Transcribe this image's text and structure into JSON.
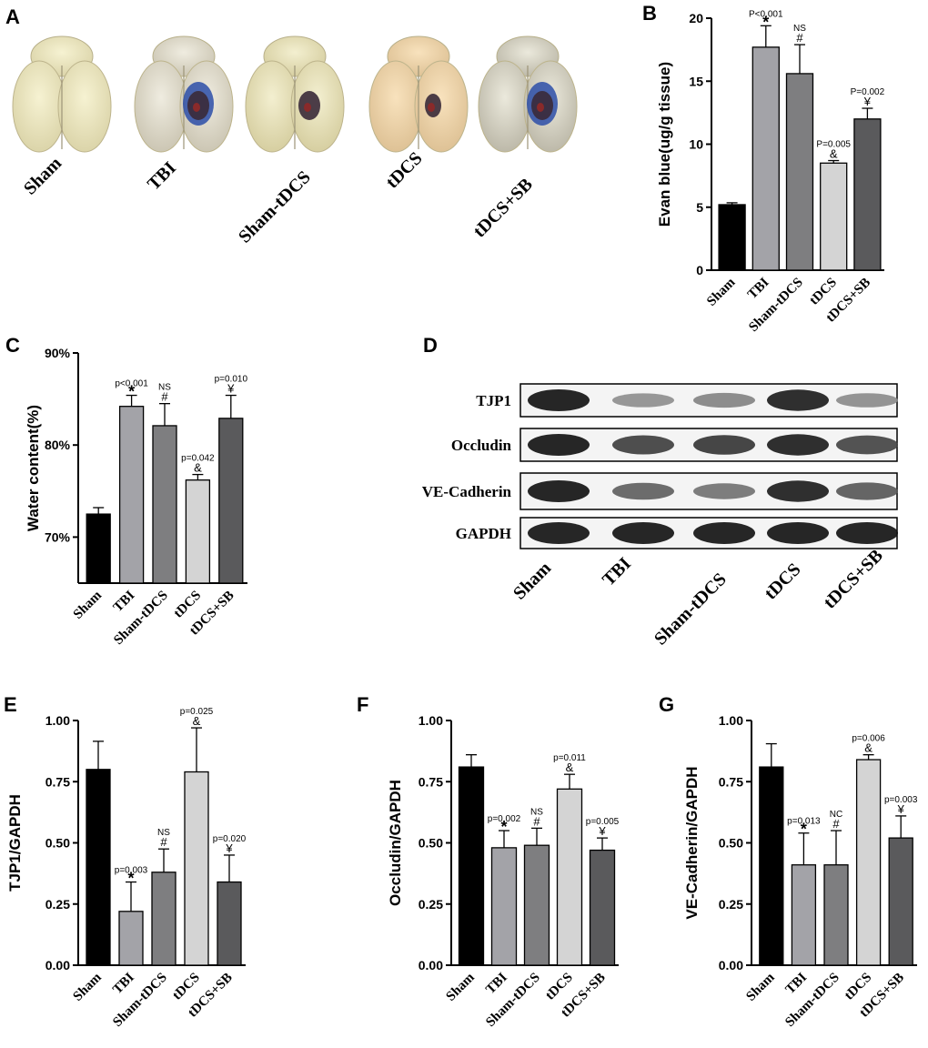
{
  "panel_labels": {
    "A": "A",
    "B": "B",
    "C": "C",
    "D": "D",
    "E": "E",
    "F": "F",
    "G": "G"
  },
  "groups": [
    "Sham",
    "TBI",
    "Sham-tDCS",
    "tDCS",
    "tDCS+SB"
  ],
  "colors": {
    "sham": "#000000",
    "tbi": "#a3a3a8",
    "sham_tdcs": "#7e7e80",
    "tdcs": "#d4d4d4",
    "tdcs_sb": "#5a5a5c"
  },
  "panel_a": {
    "brains": [
      {
        "label": "Sham",
        "lesion": "none"
      },
      {
        "label": "TBI",
        "lesion": "blue"
      },
      {
        "label": "Sham-tDCS",
        "lesion": "dark"
      },
      {
        "label": "tDCS",
        "lesion": "dark-small"
      },
      {
        "label": "tDCS+SB",
        "lesion": "blue-dark"
      }
    ]
  },
  "panel_d": {
    "rows": [
      "TJP1",
      "Occludin",
      "VE-Cadherin",
      "GAPDH"
    ],
    "lanes": [
      "Sham",
      "TBI",
      "Sham-tDCS",
      "tDCS",
      "tDCS+SB"
    ]
  },
  "chart_data": [
    {
      "panel": "B",
      "type": "bar",
      "categories": [
        "Sham",
        "TBI",
        "Sham-tDCS",
        "tDCS",
        "tDCS+SB"
      ],
      "values": [
        5.2,
        17.7,
        15.6,
        8.5,
        12.0
      ],
      "errors": [
        0.15,
        1.7,
        2.3,
        0.2,
        0.85
      ],
      "ylabel": "Evan blue(ug/g tissue)",
      "ylim": [
        0,
        20
      ],
      "yticks": [
        "0",
        "5",
        "10",
        "15",
        "20"
      ],
      "annotations": [
        {
          "cat": 1,
          "p": "P<0.001",
          "sym": "*"
        },
        {
          "cat": 2,
          "p": "NS",
          "sym": "#"
        },
        {
          "cat": 3,
          "p": "P=0.005",
          "sym": "&"
        },
        {
          "cat": 4,
          "p": "P=0.002",
          "sym": "¥"
        }
      ]
    },
    {
      "panel": "C",
      "type": "bar",
      "categories": [
        "Sham",
        "TBI",
        "Sham-tDCS",
        "tDCS",
        "tDCS+SB"
      ],
      "values": [
        72.5,
        84.2,
        82.1,
        76.2,
        82.9
      ],
      "errors": [
        0.7,
        1.2,
        2.4,
        0.6,
        2.5
      ],
      "ylabel": "Water content(%)",
      "ylim": [
        65,
        90
      ],
      "yticks": [
        "70%",
        "80%",
        "90%"
      ],
      "ytick_values": [
        70,
        80,
        90
      ],
      "annotations": [
        {
          "cat": 1,
          "p": "p<0.001",
          "sym": "*"
        },
        {
          "cat": 2,
          "p": "NS",
          "sym": "#"
        },
        {
          "cat": 3,
          "p": "p=0.042",
          "sym": "&"
        },
        {
          "cat": 4,
          "p": "p=0.010",
          "sym": "¥"
        }
      ]
    },
    {
      "panel": "E",
      "type": "bar",
      "categories": [
        "Sham",
        "TBI",
        "Sham-tDCS",
        "tDCS",
        "tDCS+SB"
      ],
      "values": [
        0.8,
        0.22,
        0.38,
        0.79,
        0.34
      ],
      "errors": [
        0.115,
        0.12,
        0.095,
        0.18,
        0.11
      ],
      "ylabel": "TJP1/GAPDH",
      "ylim": [
        0,
        1
      ],
      "yticks": [
        "0.00",
        "0.25",
        "0.50",
        "0.75",
        "1.00"
      ],
      "annotations": [
        {
          "cat": 1,
          "p": "p=0.003",
          "sym": "*"
        },
        {
          "cat": 2,
          "p": "NS",
          "sym": "#"
        },
        {
          "cat": 3,
          "p": "p=0.025",
          "sym": "&"
        },
        {
          "cat": 4,
          "p": "p=0.020",
          "sym": "¥"
        }
      ]
    },
    {
      "panel": "F",
      "type": "bar",
      "categories": [
        "Sham",
        "TBI",
        "Sham-tDCS",
        "tDCS",
        "tDCS+SB"
      ],
      "values": [
        0.81,
        0.48,
        0.49,
        0.72,
        0.47
      ],
      "errors": [
        0.05,
        0.07,
        0.07,
        0.06,
        0.05
      ],
      "ylabel": "Occludin/GAPDH",
      "ylim": [
        0,
        1
      ],
      "yticks": [
        "0.00",
        "0.25",
        "0.50",
        "0.75",
        "1.00"
      ],
      "annotations": [
        {
          "cat": 1,
          "p": "p=0.002",
          "sym": "*"
        },
        {
          "cat": 2,
          "p": "NS",
          "sym": "#"
        },
        {
          "cat": 3,
          "p": "p=0.011",
          "sym": "&"
        },
        {
          "cat": 4,
          "p": "p=0.005",
          "sym": "¥"
        }
      ]
    },
    {
      "panel": "G",
      "type": "bar",
      "categories": [
        "Sham",
        "TBI",
        "Sham-tDCS",
        "tDCS",
        "tDCS+SB"
      ],
      "values": [
        0.81,
        0.41,
        0.41,
        0.84,
        0.52
      ],
      "errors": [
        0.095,
        0.13,
        0.14,
        0.02,
        0.09
      ],
      "ylabel": "VE-Cadherin/GAPDH",
      "ylim": [
        0,
        1
      ],
      "yticks": [
        "0.00",
        "0.25",
        "0.50",
        "0.75",
        "1.00"
      ],
      "annotations": [
        {
          "cat": 1,
          "p": "p=0.013",
          "sym": "*"
        },
        {
          "cat": 2,
          "p": "NC",
          "sym": "#"
        },
        {
          "cat": 3,
          "p": "p=0.006",
          "sym": "&"
        },
        {
          "cat": 4,
          "p": "p=0.003",
          "sym": "¥"
        }
      ]
    }
  ]
}
